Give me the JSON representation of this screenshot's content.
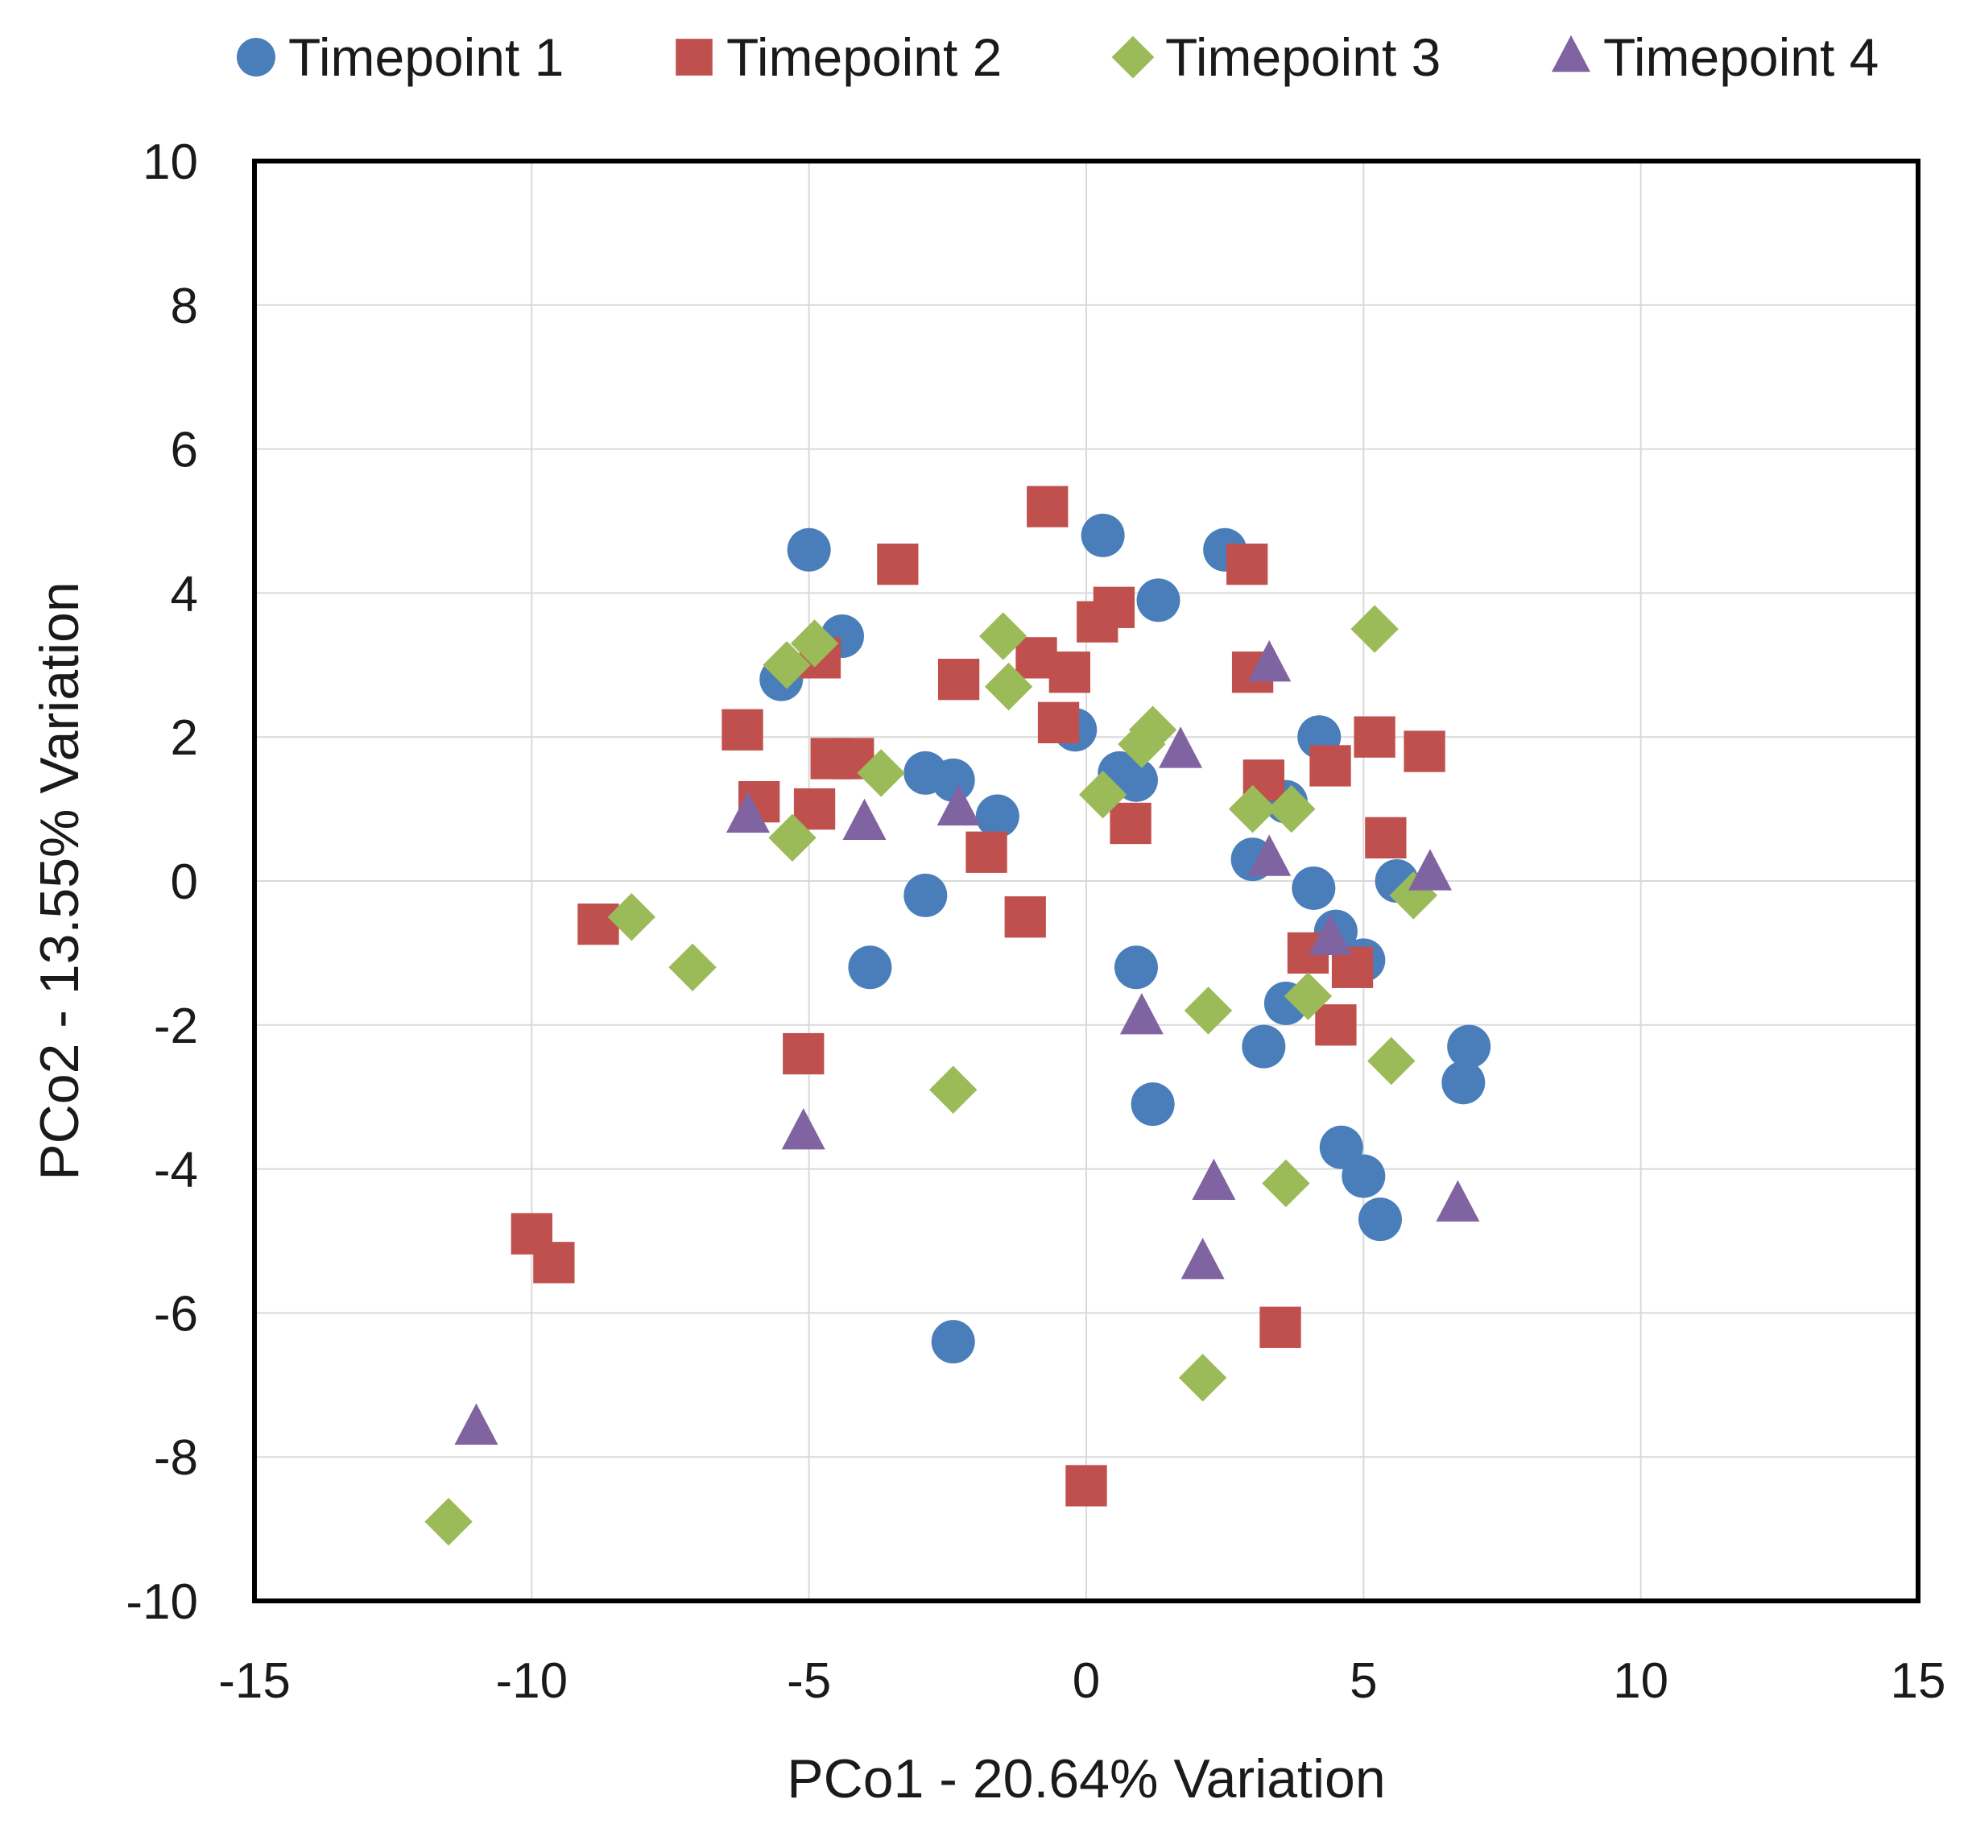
{
  "chart_data": {
    "type": "scatter",
    "title": "",
    "xlabel": "PCo1 - 20.64% Variation",
    "ylabel": "PCo2 - 13.55% Variation",
    "xlim": [
      -15,
      15
    ],
    "ylim": [
      -10,
      10
    ],
    "x_ticks": [
      -15,
      -10,
      -5,
      0,
      5,
      10,
      15
    ],
    "y_ticks": [
      -10,
      -8,
      -6,
      -4,
      -2,
      0,
      2,
      4,
      6,
      8,
      10
    ],
    "x_tick_labels": [
      "-15",
      "-10",
      "-5",
      "0",
      "5",
      "10",
      "15"
    ],
    "y_tick_labels": [
      "-10",
      "-8",
      "-6",
      "-4",
      "-2",
      "0",
      "2",
      "4",
      "6",
      "8",
      "10"
    ],
    "grid": true,
    "legend_position": "top",
    "series": [
      {
        "name": "Timepoint 1",
        "marker": "circle",
        "color": "#4a7ebb",
        "points": [
          [
            -5.0,
            4.6
          ],
          [
            -4.4,
            3.4
          ],
          [
            -5.5,
            2.8
          ],
          [
            -2.9,
            1.5
          ],
          [
            -2.4,
            1.4
          ],
          [
            -1.6,
            0.9
          ],
          [
            -2.9,
            -0.2
          ],
          [
            -3.9,
            -1.2
          ],
          [
            -2.4,
            -6.4
          ],
          [
            0.3,
            4.8
          ],
          [
            1.3,
            3.9
          ],
          [
            2.5,
            4.6
          ],
          [
            -0.2,
            2.1
          ],
          [
            0.6,
            1.5
          ],
          [
            0.9,
            1.4
          ],
          [
            0.9,
            -1.2
          ],
          [
            1.2,
            -3.1
          ],
          [
            3.0,
            0.3
          ],
          [
            4.2,
            2.0
          ],
          [
            3.6,
            1.1
          ],
          [
            4.1,
            -0.1
          ],
          [
            4.5,
            -0.7
          ],
          [
            5.0,
            -1.1
          ],
          [
            3.6,
            -1.7
          ],
          [
            3.2,
            -2.3
          ],
          [
            4.6,
            -3.7
          ],
          [
            5.0,
            -4.1
          ],
          [
            5.3,
            -4.7
          ],
          [
            5.6,
            0.0
          ],
          [
            6.9,
            -2.3
          ],
          [
            6.8,
            -2.8
          ]
        ]
      },
      {
        "name": "Timepoint 2",
        "marker": "square",
        "color": "#c0504d",
        "points": [
          [
            -0.7,
            5.2
          ],
          [
            -3.4,
            4.4
          ],
          [
            -4.8,
            3.1
          ],
          [
            -2.3,
            2.8
          ],
          [
            -6.2,
            2.1
          ],
          [
            -4.6,
            1.7
          ],
          [
            -4.2,
            1.7
          ],
          [
            -5.9,
            1.1
          ],
          [
            -4.9,
            1.0
          ],
          [
            -1.8,
            0.4
          ],
          [
            -1.1,
            -0.5
          ],
          [
            -8.8,
            -0.6
          ],
          [
            -5.1,
            -2.4
          ],
          [
            -10.0,
            -4.9
          ],
          [
            -9.6,
            -5.3
          ],
          [
            3.5,
            -6.2
          ],
          [
            0.0,
            -8.4
          ],
          [
            -0.9,
            3.1
          ],
          [
            -0.3,
            2.9
          ],
          [
            0.2,
            3.6
          ],
          [
            0.5,
            3.8
          ],
          [
            -0.5,
            2.2
          ],
          [
            0.8,
            0.8
          ],
          [
            2.9,
            4.4
          ],
          [
            3.0,
            2.9
          ],
          [
            3.2,
            1.4
          ],
          [
            4.4,
            1.6
          ],
          [
            5.2,
            2.0
          ],
          [
            6.1,
            1.8
          ],
          [
            5.4,
            0.6
          ],
          [
            4.0,
            -1.0
          ],
          [
            4.8,
            -1.2
          ],
          [
            4.5,
            -2.0
          ]
        ]
      },
      {
        "name": "Timepoint 3",
        "marker": "diamond",
        "color": "#9bbb59",
        "points": [
          [
            -5.4,
            3.0
          ],
          [
            -4.9,
            3.3
          ],
          [
            -1.5,
            3.4
          ],
          [
            -1.4,
            2.7
          ],
          [
            -3.7,
            1.5
          ],
          [
            -5.3,
            0.6
          ],
          [
            -8.2,
            -0.5
          ],
          [
            -7.1,
            -1.2
          ],
          [
            -2.4,
            -2.9
          ],
          [
            -11.5,
            -8.9
          ],
          [
            1.2,
            2.1
          ],
          [
            1.0,
            1.9
          ],
          [
            0.3,
            1.2
          ],
          [
            3.0,
            1.0
          ],
          [
            3.7,
            1.0
          ],
          [
            5.2,
            3.5
          ],
          [
            5.9,
            -0.2
          ],
          [
            2.2,
            -1.8
          ],
          [
            4.0,
            -1.6
          ],
          [
            5.5,
            -2.5
          ],
          [
            3.6,
            -4.2
          ],
          [
            2.1,
            -6.9
          ]
        ]
      },
      {
        "name": "Timepoint 4",
        "marker": "triangle",
        "color": "#8064a2",
        "points": [
          [
            -6.1,
            0.9
          ],
          [
            -2.3,
            1.0
          ],
          [
            -4.0,
            0.8
          ],
          [
            -5.1,
            -3.5
          ],
          [
            -11.0,
            -7.6
          ],
          [
            1.7,
            1.8
          ],
          [
            3.3,
            3.0
          ],
          [
            3.3,
            0.3
          ],
          [
            6.2,
            0.1
          ],
          [
            4.4,
            -0.8
          ],
          [
            1.0,
            -1.9
          ],
          [
            2.3,
            -4.2
          ],
          [
            2.1,
            -5.3
          ],
          [
            6.7,
            -4.5
          ]
        ]
      }
    ]
  }
}
